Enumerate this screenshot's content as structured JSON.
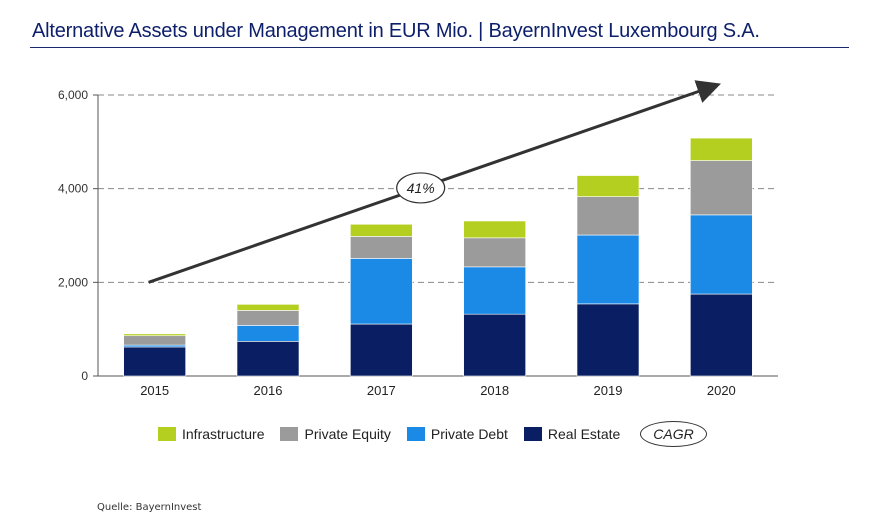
{
  "header": {
    "title": "Alternative Assets under Management in EUR Mio. | BayernInvest Luxembourg S.A."
  },
  "chart_data": {
    "type": "bar",
    "stacked": true,
    "categories": [
      "2015",
      "2016",
      "2017",
      "2018",
      "2019",
      "2020"
    ],
    "series": [
      {
        "name": "Real Estate",
        "color": "#0a1f63",
        "values": [
          620,
          740,
          1110,
          1320,
          1540,
          1750
        ]
      },
      {
        "name": "Private Debt",
        "color": "#1a8ae6",
        "values": [
          40,
          340,
          1400,
          1010,
          1470,
          1690
        ]
      },
      {
        "name": "Private Equity",
        "color": "#9b9b9b",
        "values": [
          200,
          320,
          470,
          620,
          820,
          1160
        ]
      },
      {
        "name": "Infrastructure",
        "color": "#b4cf1f",
        "values": [
          40,
          130,
          260,
          360,
          450,
          480
        ]
      }
    ],
    "ylim": [
      0,
      6000
    ],
    "yticks": [
      "0",
      "2,000",
      "4,000",
      "6,000"
    ],
    "ytick_values": [
      0,
      2000,
      4000,
      6000
    ],
    "grid": "dashed horizontal",
    "legend": "bottom",
    "annotation": {
      "label": "41%",
      "type": "trend arrow",
      "from_category": "2015",
      "to_category": "2020",
      "from_value": 2000,
      "to_value": 6200
    }
  },
  "legend": {
    "items": [
      {
        "label": "Infrastructure",
        "color": "#b4cf1f"
      },
      {
        "label": "Private Equity",
        "color": "#9b9b9b"
      },
      {
        "label": "Private Debt",
        "color": "#1a8ae6"
      },
      {
        "label": "Real Estate",
        "color": "#0a1f63"
      }
    ],
    "cagr_label": "CAGR"
  },
  "footer": {
    "source": "Quelle: BayernInvest"
  }
}
